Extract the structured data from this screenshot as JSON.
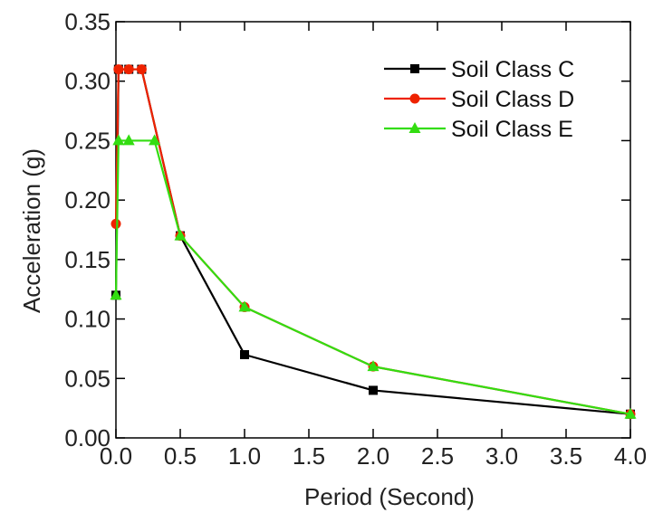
{
  "chart_data": {
    "type": "line",
    "title": "",
    "xlabel": "Period (Second)",
    "ylabel": "Acceleration (g)",
    "xlim": [
      0,
      4.0
    ],
    "ylim": [
      0,
      0.35
    ],
    "xticks": [
      0,
      0.5,
      1.0,
      1.5,
      2.0,
      2.5,
      3.0,
      3.5,
      4.0
    ],
    "xtick_labels": [
      "0.0",
      "0.5",
      "1.0",
      "1.5",
      "2.0",
      "2.5",
      "3.0",
      "3.5",
      "4.0"
    ],
    "yticks": [
      0,
      0.05,
      0.1,
      0.15,
      0.2,
      0.25,
      0.3,
      0.35
    ],
    "ytick_labels": [
      "0.00",
      "0.05",
      "0.10",
      "0.15",
      "0.20",
      "0.25",
      "0.30",
      "0.35"
    ],
    "grid": false,
    "legend_position": "top-right",
    "series": [
      {
        "name": "Soil Class C",
        "color": "#000000",
        "marker": "square",
        "x": [
          0,
          0.02,
          0.1,
          0.2,
          0.5,
          1.0,
          2.0,
          4.0
        ],
        "y": [
          0.12,
          0.31,
          0.31,
          0.31,
          0.17,
          0.07,
          0.04,
          0.02
        ]
      },
      {
        "name": "Soil Class D",
        "color": "#ee2200",
        "marker": "circle",
        "x": [
          0,
          0.02,
          0.1,
          0.2,
          0.5,
          1.0,
          2.0,
          4.0
        ],
        "y": [
          0.18,
          0.31,
          0.31,
          0.31,
          0.17,
          0.11,
          0.06,
          0.02
        ]
      },
      {
        "name": "Soil Class E",
        "color": "#33dd11",
        "marker": "triangle",
        "x": [
          0,
          0.02,
          0.1,
          0.3,
          0.5,
          1.0,
          2.0,
          4.0
        ],
        "y": [
          0.12,
          0.25,
          0.25,
          0.25,
          0.17,
          0.11,
          0.06,
          0.02
        ]
      }
    ]
  }
}
